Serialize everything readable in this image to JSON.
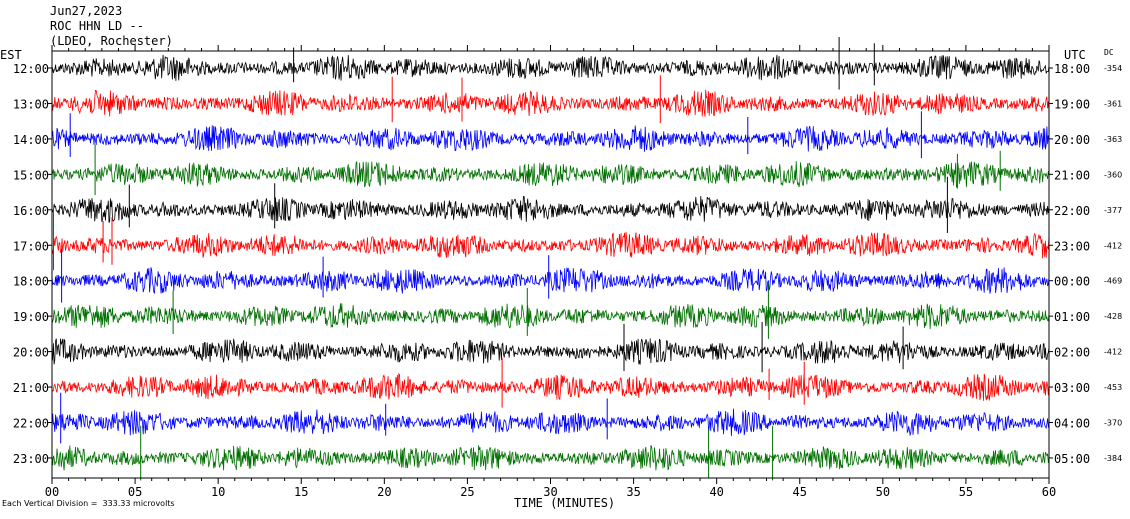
{
  "header": {
    "date": "Jun27,2023",
    "station": "ROC HHN LD --",
    "network": "(LDEO, Rochester)"
  },
  "axis_labels": {
    "left_tz": "EST",
    "right_tz": "UTC",
    "dc": "DC",
    "x_title": "TIME (MINUTES)"
  },
  "footer": {
    "scale_note": "Each Vertical Division =  333.33 microvolts"
  },
  "colors": {
    "black": "#000000",
    "red": "#ff0000",
    "blue": "#0000ff",
    "green": "#007000"
  },
  "chart_data": {
    "type": "line",
    "title": "ROC HHN LD --",
    "xlabel": "TIME (MINUTES)",
    "xlim": [
      0,
      60
    ],
    "x_ticks": [
      "00",
      "05",
      "10",
      "15",
      "20",
      "25",
      "30",
      "35",
      "40",
      "45",
      "50",
      "55",
      "60"
    ],
    "series": [
      {
        "est": "12:00",
        "utc": "18:00",
        "dc": "-354",
        "color": "black"
      },
      {
        "est": "13:00",
        "utc": "19:00",
        "dc": "-361",
        "color": "red"
      },
      {
        "est": "14:00",
        "utc": "20:00",
        "dc": "-363",
        "color": "blue"
      },
      {
        "est": "15:00",
        "utc": "21:00",
        "dc": "-360",
        "color": "green"
      },
      {
        "est": "16:00",
        "utc": "22:00",
        "dc": "-377",
        "color": "black"
      },
      {
        "est": "17:00",
        "utc": "23:00",
        "dc": "-412",
        "color": "red"
      },
      {
        "est": "18:00",
        "utc": "00:00",
        "dc": "-469",
        "color": "blue"
      },
      {
        "est": "19:00",
        "utc": "01:00",
        "dc": "-428",
        "color": "green"
      },
      {
        "est": "20:00",
        "utc": "02:00",
        "dc": "-412",
        "color": "black"
      },
      {
        "est": "21:00",
        "utc": "03:00",
        "dc": "-453",
        "color": "red"
      },
      {
        "est": "22:00",
        "utc": "04:00",
        "dc": "-370",
        "color": "blue"
      },
      {
        "est": "23:00",
        "utc": "05:00",
        "dc": "-384",
        "color": "green"
      }
    ]
  }
}
